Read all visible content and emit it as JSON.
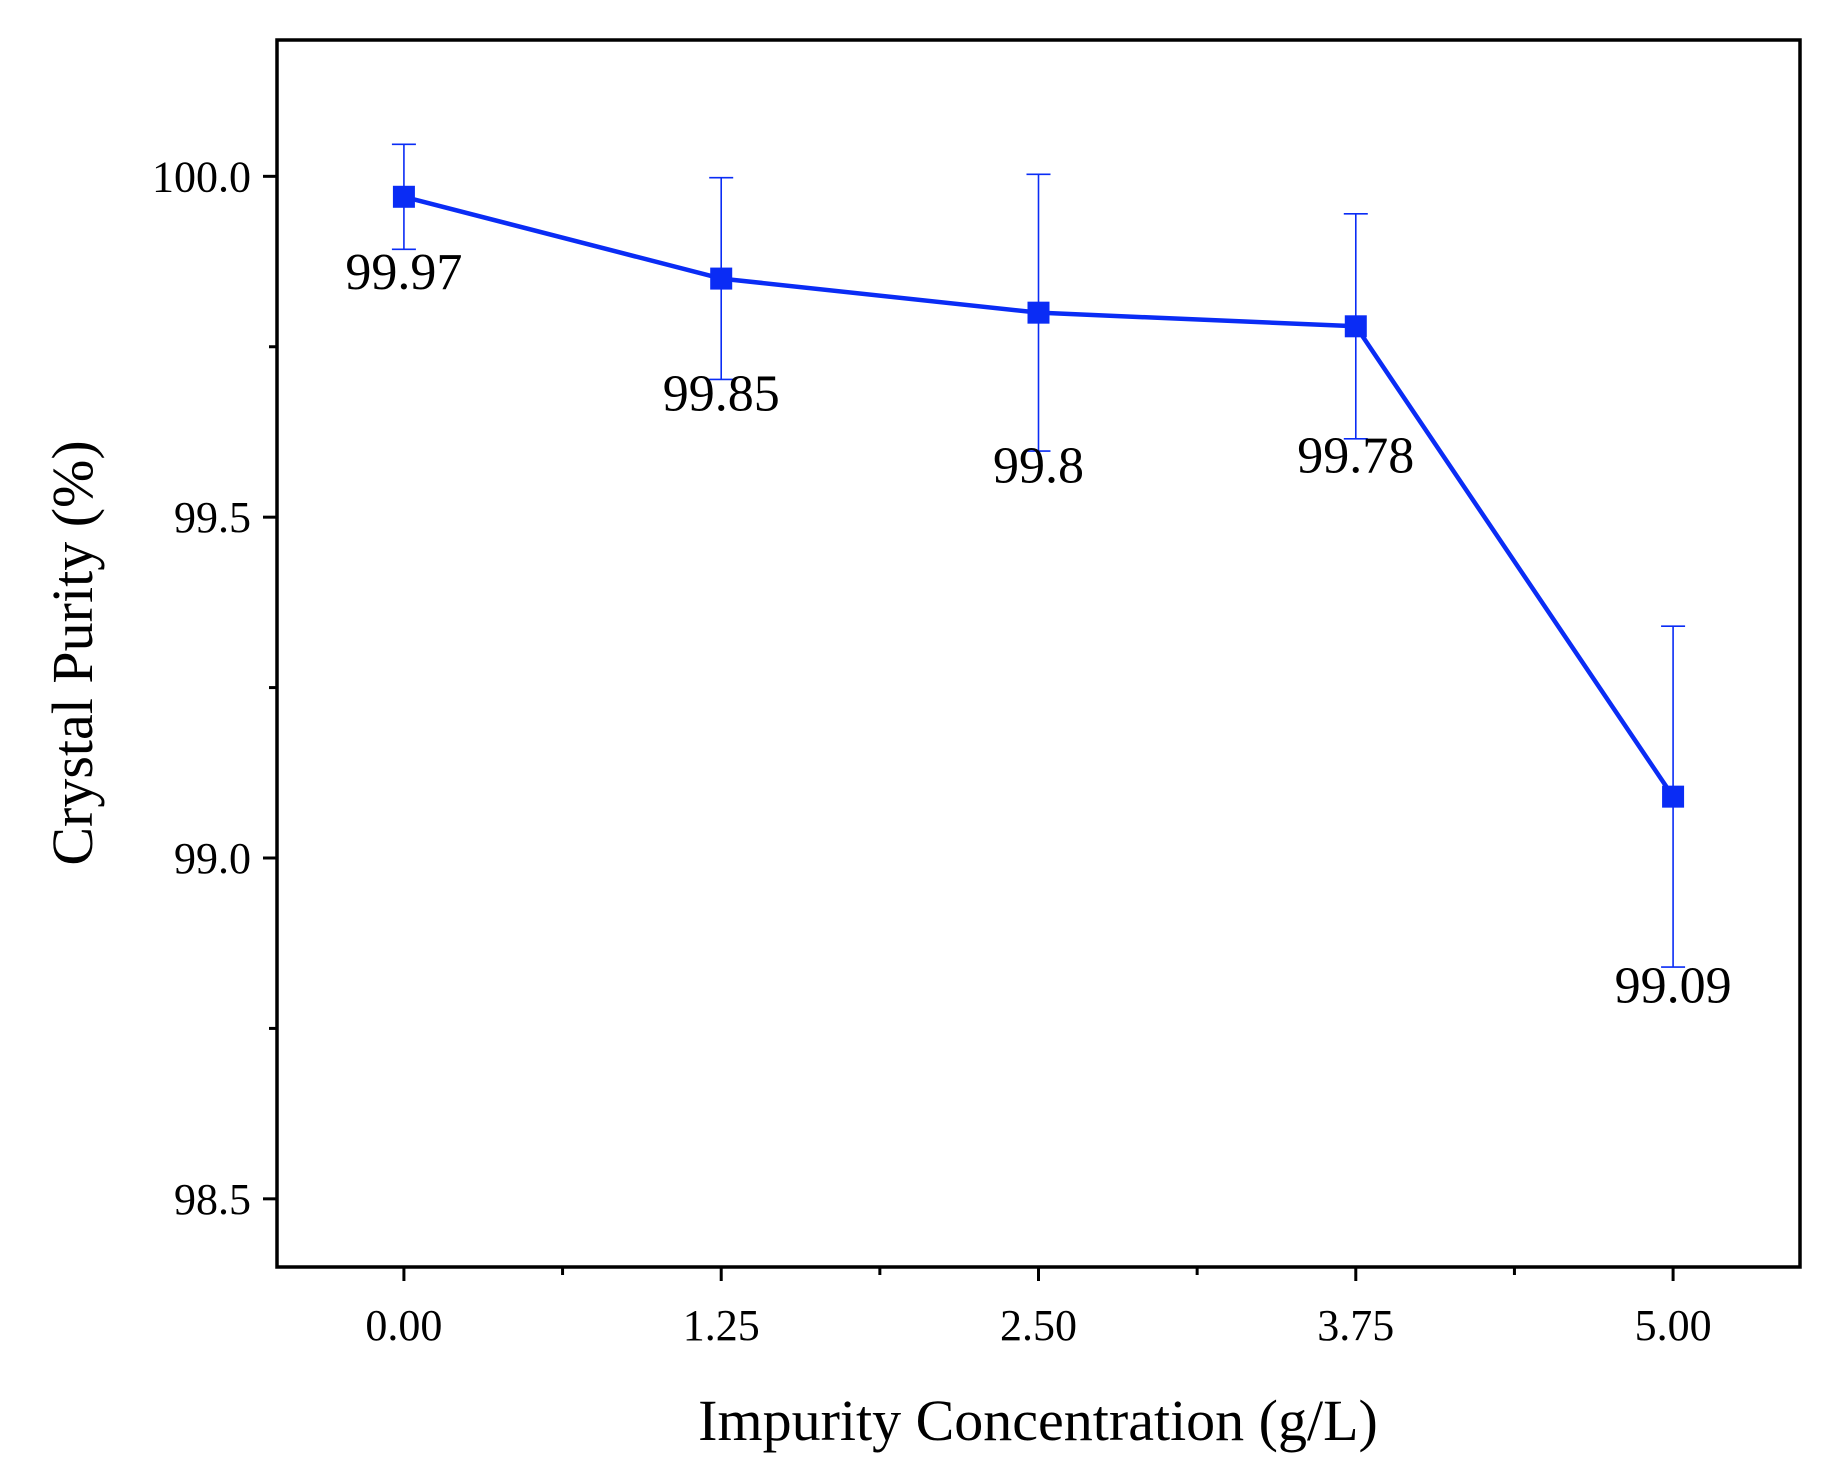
{
  "chart_data": {
    "type": "line",
    "xlabel": "Impurity Concentration (g/L)",
    "ylabel": "Crystal Purity (%)",
    "xlim": [
      -0.5,
      5.5
    ],
    "ylim": [
      98.4,
      100.2
    ],
    "x_ticks": [
      0,
      1.25,
      2.5,
      3.75,
      5
    ],
    "x_tick_labels": [
      "0.00",
      "1.25",
      "2.50",
      "3.75",
      "5.00"
    ],
    "x_minor_ticks": [
      0.625,
      1.875,
      3.125,
      4.375
    ],
    "y_ticks": [
      98.5,
      99.0,
      99.5,
      100.0
    ],
    "y_tick_labels": [
      "98.5",
      "99.0",
      "99.5",
      "100.0"
    ],
    "y_minor_ticks": [
      98.75,
      99.25,
      99.75
    ],
    "grid": false,
    "series": [
      {
        "name": "Crystal Purity",
        "color": "#0a2cf5",
        "marker": "square",
        "x": [
          0,
          1.25,
          2.5,
          3.75,
          5
        ],
        "values": [
          99.97,
          99.85,
          99.8,
          99.78,
          99.09
        ],
        "error": [
          0.077,
          0.148,
          0.203,
          0.165,
          0.25
        ],
        "labels": [
          "99.97",
          "99.85",
          "99.8",
          "99.78",
          "99.09"
        ]
      }
    ]
  }
}
